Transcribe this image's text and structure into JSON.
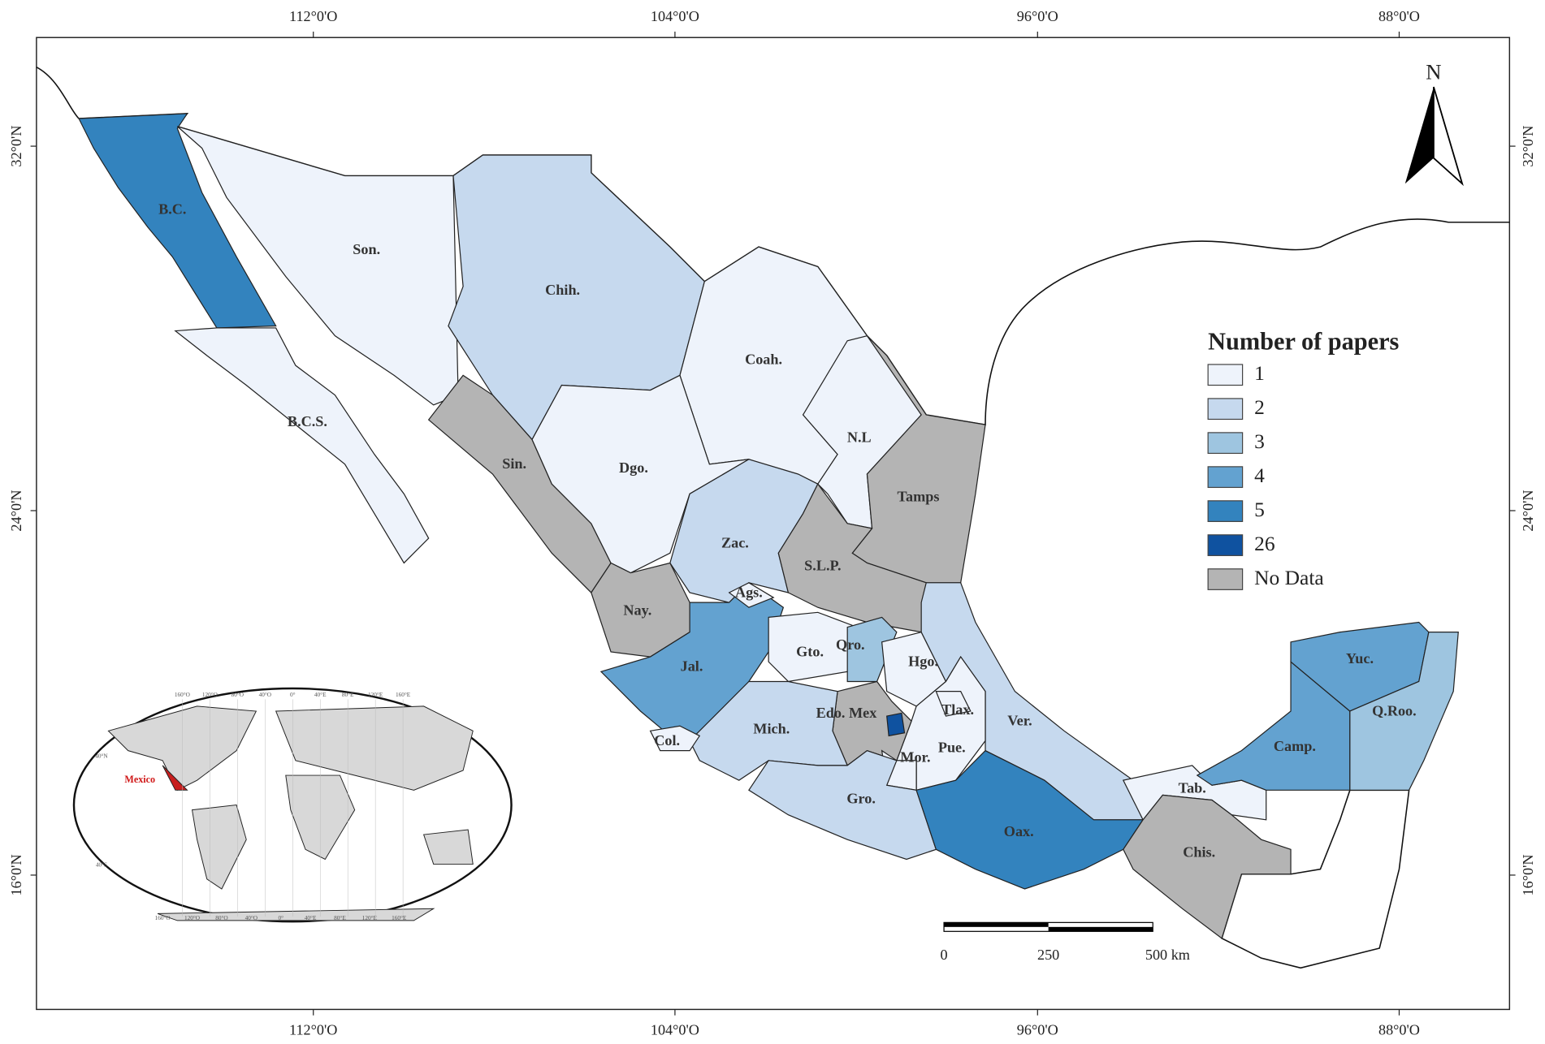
{
  "map": {
    "axes": {
      "top": [
        "112°0'O",
        "104°0'O",
        "96°0'O",
        "88°0'O"
      ],
      "bottom": [
        "112°0'O",
        "104°0'O",
        "96°0'O",
        "88°0'O"
      ],
      "left": [
        "32°0'N",
        "24°0'N",
        "16°0'N"
      ],
      "right": [
        "32°0'N",
        "24°0'N",
        "16°0'N"
      ]
    },
    "states": [
      {
        "label": "B.C.",
        "color": "#3383be"
      },
      {
        "label": "B.C.S.",
        "color": "#eef3fb"
      },
      {
        "label": "Son.",
        "color": "#eef3fb"
      },
      {
        "label": "Chih.",
        "color": "#c6d9ee"
      },
      {
        "label": "Coah.",
        "color": "#eef3fb"
      },
      {
        "label": "N.L",
        "color": "#eef3fb"
      },
      {
        "label": "Tamps",
        "color": "#b4b4b4"
      },
      {
        "label": "Sin.",
        "color": "#b4b4b4"
      },
      {
        "label": "Dgo.",
        "color": "#eef3fb"
      },
      {
        "label": "Zac.",
        "color": "#c6d9ee"
      },
      {
        "label": "S.L.P.",
        "color": "#b4b4b4"
      },
      {
        "label": "Nay.",
        "color": "#b4b4b4"
      },
      {
        "label": "Ags.",
        "color": "#eef3fb"
      },
      {
        "label": "Jal.",
        "color": "#63a2d0"
      },
      {
        "label": "Gto.",
        "color": "#eef3fb"
      },
      {
        "label": "Qro.",
        "color": "#9ec5e0"
      },
      {
        "label": "Hgo.",
        "color": "#eef3fb"
      },
      {
        "label": "Edo. Mex",
        "color": "#b4b4b4"
      },
      {
        "color": "#0f52a0"
      },
      {
        "label": "Mor.",
        "color": "#eef3fb"
      },
      {
        "label": "Tlax.",
        "color": "#eef3fb"
      },
      {
        "label": "Pue.",
        "color": "#eef3fb"
      },
      {
        "label": "Ver.",
        "color": "#c6d9ee"
      },
      {
        "label": "Mich.",
        "color": "#c6d9ee"
      },
      {
        "label": "Col.",
        "color": "#eef3fb"
      },
      {
        "label": "Gro.",
        "color": "#c6d9ee"
      },
      {
        "label": "Oax.",
        "color": "#3383be"
      },
      {
        "label": "Tab.",
        "color": "#eef3fb"
      },
      {
        "label": "Chis.",
        "color": "#b4b4b4"
      },
      {
        "label": "Camp.",
        "color": "#63a2d0"
      },
      {
        "label": "Yuc.",
        "color": "#63a2d0"
      },
      {
        "label": "Q.Roo.",
        "color": "#9ec5e0"
      }
    ],
    "legend": {
      "title": "Number of papers",
      "items": [
        {
          "label": "1",
          "color": "#eef3fb"
        },
        {
          "label": "2",
          "color": "#c6d9ee"
        },
        {
          "label": "3",
          "color": "#9ec5e0"
        },
        {
          "label": "4",
          "color": "#63a2d0"
        },
        {
          "label": "5",
          "color": "#3383be"
        },
        {
          "label": "26",
          "color": "#0f52a0"
        },
        {
          "label": "No Data",
          "color": "#b4b4b4"
        }
      ]
    },
    "north": "N",
    "scale": [
      "0",
      "250",
      "500 km"
    ],
    "inset": {
      "label": "Mexico",
      "top": [
        "160°O",
        "120°O",
        "80°O",
        "40°O",
        "0°",
        "40°E",
        "80°E",
        "120°E",
        "160°E"
      ],
      "bottom": [
        "160°O",
        "120°O",
        "80°O",
        "40°O",
        "0°",
        "40°E",
        "80°E",
        "120°E",
        "160°E"
      ],
      "left": [
        "40°N",
        "40°S"
      ]
    }
  }
}
